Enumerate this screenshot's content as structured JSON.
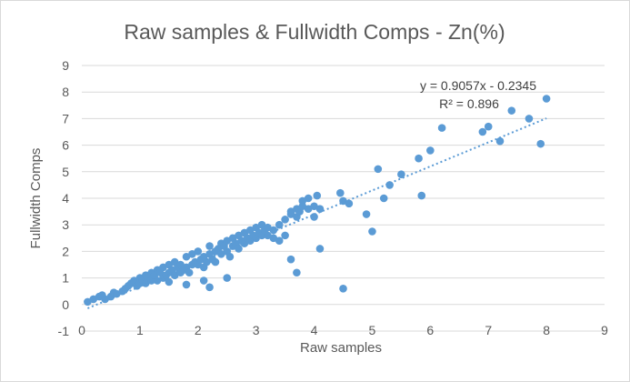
{
  "chart_data": {
    "type": "scatter",
    "title": "Raw samples & Fullwidth Comps - Zn(%)",
    "xlabel": "Raw samples",
    "ylabel": "Fullwidth Comps",
    "xlim": [
      0,
      9
    ],
    "ylim": [
      -1,
      9
    ],
    "x_ticks": [
      "0",
      "1",
      "2",
      "3",
      "4",
      "5",
      "6",
      "7",
      "8",
      "9"
    ],
    "y_ticks": [
      "-1",
      "0",
      "1",
      "2",
      "3",
      "4",
      "5",
      "6",
      "7",
      "8",
      "9"
    ],
    "grid": "horizontal",
    "marker_color": "#5b9bd5",
    "trendline": {
      "type": "linear",
      "slope": 0.9057,
      "intercept": -0.2345,
      "x_range": [
        0.1,
        8.0
      ],
      "style": "dotted",
      "equation_label": "y = 0.9057x - 0.2345",
      "r2_label": "R² = 0.896"
    },
    "points": [
      [
        0.1,
        0.1
      ],
      [
        0.2,
        0.2
      ],
      [
        0.3,
        0.3
      ],
      [
        0.35,
        0.35
      ],
      [
        0.4,
        0.2
      ],
      [
        0.5,
        0.3
      ],
      [
        0.55,
        0.45
      ],
      [
        0.6,
        0.4
      ],
      [
        0.7,
        0.5
      ],
      [
        0.75,
        0.6
      ],
      [
        0.8,
        0.7
      ],
      [
        0.85,
        0.8
      ],
      [
        0.9,
        0.9
      ],
      [
        0.95,
        0.7
      ],
      [
        1.0,
        1.0
      ],
      [
        1.0,
        0.8
      ],
      [
        1.05,
        0.9
      ],
      [
        1.1,
        1.1
      ],
      [
        1.1,
        0.8
      ],
      [
        1.15,
        1.0
      ],
      [
        1.2,
        1.2
      ],
      [
        1.2,
        0.9
      ],
      [
        1.25,
        1.1
      ],
      [
        1.3,
        1.3
      ],
      [
        1.3,
        0.9
      ],
      [
        1.35,
        1.2
      ],
      [
        1.4,
        1.4
      ],
      [
        1.4,
        1.0
      ],
      [
        1.45,
        1.1
      ],
      [
        1.5,
        1.5
      ],
      [
        1.5,
        1.2
      ],
      [
        1.55,
        1.3
      ],
      [
        1.6,
        1.6
      ],
      [
        1.6,
        1.1
      ],
      [
        1.65,
        1.4
      ],
      [
        1.7,
        1.5
      ],
      [
        1.7,
        1.2
      ],
      [
        1.75,
        1.3
      ],
      [
        1.8,
        1.8
      ],
      [
        1.8,
        1.4
      ],
      [
        1.85,
        1.2
      ],
      [
        1.9,
        1.9
      ],
      [
        1.9,
        1.5
      ],
      [
        1.95,
        1.6
      ],
      [
        2.0,
        2.0
      ],
      [
        2.0,
        1.5
      ],
      [
        2.05,
        1.7
      ],
      [
        2.1,
        1.8
      ],
      [
        2.1,
        1.4
      ],
      [
        2.15,
        1.6
      ],
      [
        2.2,
        2.2
      ],
      [
        2.2,
        1.9
      ],
      [
        2.25,
        1.7
      ],
      [
        2.3,
        2.0
      ],
      [
        2.3,
        1.6
      ],
      [
        2.35,
        2.1
      ],
      [
        2.4,
        2.3
      ],
      [
        2.4,
        1.9
      ],
      [
        2.45,
        2.2
      ],
      [
        2.5,
        2.4
      ],
      [
        2.5,
        2.0
      ],
      [
        2.55,
        1.8
      ],
      [
        2.6,
        2.5
      ],
      [
        2.6,
        2.2
      ],
      [
        2.65,
        2.3
      ],
      [
        2.7,
        2.6
      ],
      [
        2.7,
        2.1
      ],
      [
        2.75,
        2.4
      ],
      [
        2.8,
        2.7
      ],
      [
        2.8,
        2.3
      ],
      [
        2.85,
        2.5
      ],
      [
        2.9,
        2.8
      ],
      [
        2.9,
        2.4
      ],
      [
        2.95,
        2.6
      ],
      [
        3.0,
        2.9
      ],
      [
        3.0,
        2.5
      ],
      [
        3.05,
        2.7
      ],
      [
        3.1,
        3.0
      ],
      [
        3.1,
        2.6
      ],
      [
        3.15,
        2.8
      ],
      [
        3.2,
        2.9
      ],
      [
        3.2,
        2.6
      ],
      [
        3.3,
        2.8
      ],
      [
        3.4,
        3.0
      ],
      [
        3.5,
        3.2
      ],
      [
        3.6,
        3.4
      ],
      [
        3.6,
        3.5
      ],
      [
        3.7,
        3.6
      ],
      [
        3.7,
        3.3
      ],
      [
        3.75,
        3.5
      ],
      [
        3.8,
        3.7
      ],
      [
        3.8,
        3.9
      ],
      [
        3.9,
        3.6
      ],
      [
        3.9,
        4.0
      ],
      [
        4.0,
        3.7
      ],
      [
        4.0,
        3.3
      ],
      [
        4.05,
        4.1
      ],
      [
        4.1,
        3.6
      ],
      [
        3.5,
        2.6
      ],
      [
        3.4,
        2.4
      ],
      [
        3.3,
        2.5
      ],
      [
        3.6,
        1.7
      ],
      [
        3.7,
        1.2
      ],
      [
        4.1,
        2.1
      ],
      [
        4.5,
        0.6
      ],
      [
        2.2,
        0.65
      ],
      [
        2.1,
        0.9
      ],
      [
        1.8,
        0.75
      ],
      [
        2.5,
        1.0
      ],
      [
        1.5,
        0.85
      ],
      [
        4.45,
        4.2
      ],
      [
        4.5,
        3.9
      ],
      [
        4.6,
        3.8
      ],
      [
        4.9,
        3.4
      ],
      [
        5.0,
        2.75
      ],
      [
        5.1,
        5.1
      ],
      [
        5.2,
        4.0
      ],
      [
        5.3,
        4.5
      ],
      [
        5.5,
        4.9
      ],
      [
        5.8,
        5.5
      ],
      [
        5.85,
        4.1
      ],
      [
        6.0,
        5.8
      ],
      [
        6.2,
        6.65
      ],
      [
        6.9,
        6.5
      ],
      [
        7.0,
        6.7
      ],
      [
        7.2,
        6.15
      ],
      [
        7.4,
        7.3
      ],
      [
        7.7,
        7.0
      ],
      [
        7.9,
        6.05
      ],
      [
        8.0,
        7.75
      ]
    ]
  }
}
